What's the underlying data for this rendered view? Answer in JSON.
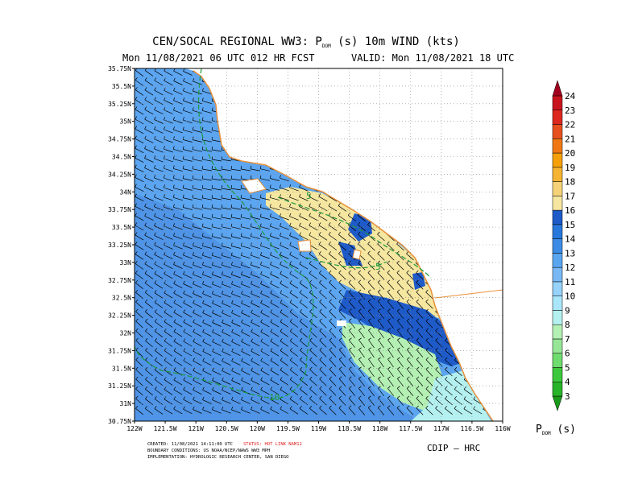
{
  "header": {
    "title_main": "CEN/SOCAL REGIONAL WW3: P",
    "title_sub": "DOM",
    "title_rest": " (s) 10m WIND (kts)",
    "line2_left": "Mon 11/08/2021 06 UTC 012 HR FCST",
    "line2_right": "VALID: Mon 11/08/2021 18 UTC"
  },
  "axes": {
    "y_labels": [
      "35.75N",
      "35.5N",
      "35.25N",
      "35N",
      "34.75N",
      "34.5N",
      "34.25N",
      "34N",
      "33.75N",
      "33.5N",
      "33.25N",
      "33N",
      "32.75N",
      "32.5N",
      "32.25N",
      "32N",
      "31.75N",
      "31.5N",
      "31.25N",
      "31N",
      "30.75N"
    ],
    "x_labels": [
      "122W",
      "121.5W",
      "121W",
      "120.5W",
      "120W",
      "119.5W",
      "119W",
      "118.5W",
      "118W",
      "117.5W",
      "117W",
      "116.5W",
      "116W"
    ]
  },
  "contour_labels": [
    "5",
    "5",
    "10"
  ],
  "colorbar": {
    "levels": [
      3,
      4,
      5,
      6,
      7,
      8,
      9,
      10,
      11,
      12,
      13,
      14,
      15,
      16,
      17,
      18,
      19,
      20,
      21,
      22,
      23,
      24
    ],
    "colors": [
      "#1a9a1a",
      "#28b428",
      "#3cc83c",
      "#6edc6e",
      "#96e696",
      "#b4f0b4",
      "#b4f0f0",
      "#aae6fa",
      "#96d2fa",
      "#78b9f5",
      "#5aa5f0",
      "#3c8ce6",
      "#2878dc",
      "#1e5ac8",
      "#f5e6a0",
      "#f5d278",
      "#f5b432",
      "#f5a00a",
      "#f07814",
      "#e6501e",
      "#dc281e",
      "#c8141e",
      "#a0001e"
    ],
    "label_main": "P",
    "label_sub": "DOM",
    "label_rest": " (s)"
  },
  "footer": [
    "CREATED: 11/08/2021 14:11:00 UTC",
    "STATUS: HOT LINK NAM12",
    "BOUNDARY CONDITIONS: US NOAA/NCEP/NAWS WW3 MPH",
    "IMPLEMENTATION: HYDROLOGIC RESEARCH CENTER, SAN DIEGO"
  ],
  "credit": "CDIP – HRC"
}
